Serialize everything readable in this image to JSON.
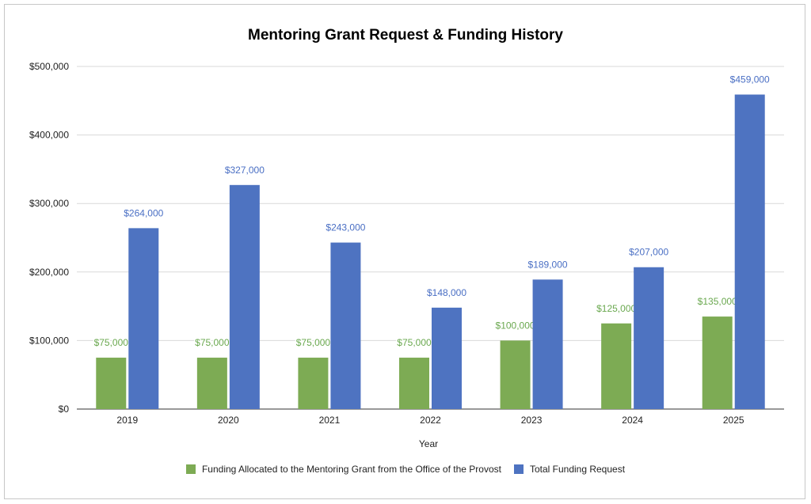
{
  "colors": {
    "green": "#7dab54",
    "blue": "#4e73c1",
    "green_label": "#6aa84f",
    "blue_label": "#4a6fc4"
  },
  "chart_data": {
    "type": "bar",
    "title": "Mentoring Grant Request & Funding History",
    "xlabel": "Year",
    "ylabel": "",
    "categories": [
      "2019",
      "2020",
      "2021",
      "2022",
      "2023",
      "2024",
      "2025"
    ],
    "series": [
      {
        "name": "Funding Allocated to the Mentoring Grant from the Office of the Provost",
        "values": [
          75000,
          75000,
          75000,
          75000,
          100000,
          125000,
          135000
        ],
        "labels": [
          "$75,000",
          "$75,000",
          "$75,000",
          "$75,000",
          "$100,000",
          "$125,000",
          "$135,000"
        ]
      },
      {
        "name": "Total Funding Request",
        "values": [
          264000,
          327000,
          243000,
          148000,
          189000,
          207000,
          459000
        ],
        "labels": [
          "$264,000",
          "$327,000",
          "$243,000",
          "$148,000",
          "$189,000",
          "$207,000",
          "$459,000"
        ]
      }
    ],
    "ylim": [
      0,
      500000
    ],
    "yticks": [
      0,
      100000,
      200000,
      300000,
      400000,
      500000
    ],
    "ytick_labels": [
      "$0",
      "$100,000",
      "$200,000",
      "$300,000",
      "$400,000",
      "$500,000"
    ],
    "grid": true,
    "legend_position": "bottom"
  }
}
